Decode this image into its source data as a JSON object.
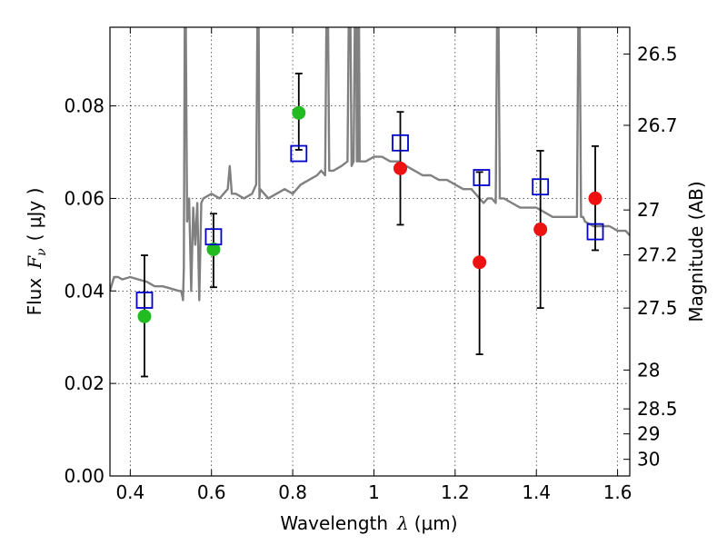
{
  "chart_data": {
    "type": "scatter",
    "xlabel": "Wavelength",
    "xlabel_symbol": "λ",
    "xlabel_unit": "(μm)",
    "ylabel": "Flux",
    "ylabel_symbol": "F",
    "ylabel_subscript": "ν",
    "ylabel_unit": "( μJy )",
    "y2label": "Magnitude (AB)",
    "xlim": [
      0.35,
      1.63
    ],
    "ylim": [
      0.0,
      0.097
    ],
    "grid": true,
    "x_ticks": [
      {
        "value": 0.4,
        "label": "0.4"
      },
      {
        "value": 0.6,
        "label": "0.6"
      },
      {
        "value": 0.8,
        "label": "0.8"
      },
      {
        "value": 1.0,
        "label": "1"
      },
      {
        "value": 1.2,
        "label": "1.2"
      },
      {
        "value": 1.4,
        "label": "1.4"
      },
      {
        "value": 1.6,
        "label": "1.6"
      }
    ],
    "y_ticks": [
      {
        "value": 0.0,
        "label": "0.00"
      },
      {
        "value": 0.02,
        "label": "0.02"
      },
      {
        "value": 0.04,
        "label": "0.04"
      },
      {
        "value": 0.06,
        "label": "0.06"
      },
      {
        "value": 0.08,
        "label": "0.08"
      }
    ],
    "y2_ticks": [
      {
        "flux": 0.0912,
        "label": "26.5"
      },
      {
        "flux": 0.0758,
        "label": "26.7"
      },
      {
        "flux": 0.0575,
        "label": "27"
      },
      {
        "flux": 0.0478,
        "label": "27.2"
      },
      {
        "flux": 0.0363,
        "label": "27.5"
      },
      {
        "flux": 0.0229,
        "label": "28"
      },
      {
        "flux": 0.0145,
        "label": "28.5"
      },
      {
        "flux": 0.0091,
        "label": "29"
      },
      {
        "flux": 0.0036,
        "label": "30"
      }
    ],
    "series": [
      {
        "name": "model spectrum",
        "kind": "line",
        "color": "#808080",
        "x": [
          0.35,
          0.36,
          0.37,
          0.38,
          0.4,
          0.42,
          0.44,
          0.46,
          0.48,
          0.5,
          0.52,
          0.525,
          0.528,
          0.53,
          0.532,
          0.535,
          0.54,
          0.545,
          0.55,
          0.555,
          0.56,
          0.565,
          0.57,
          0.575,
          0.58,
          0.6,
          0.62,
          0.63,
          0.64,
          0.645,
          0.65,
          0.655,
          0.66,
          0.68,
          0.7,
          0.71,
          0.715,
          0.718,
          0.72,
          0.74,
          0.76,
          0.78,
          0.8,
          0.82,
          0.84,
          0.86,
          0.87,
          0.88,
          0.885,
          0.89,
          0.9,
          0.92,
          0.935,
          0.94,
          0.945,
          0.95,
          0.955,
          0.958,
          0.96,
          0.962,
          0.965,
          0.97,
          0.98,
          1.0,
          1.02,
          1.04,
          1.06,
          1.08,
          1.1,
          1.12,
          1.14,
          1.16,
          1.18,
          1.2,
          1.22,
          1.24,
          1.25,
          1.26,
          1.27,
          1.28,
          1.29,
          1.3,
          1.305,
          1.31,
          1.315,
          1.32,
          1.34,
          1.36,
          1.38,
          1.4,
          1.42,
          1.44,
          1.46,
          1.48,
          1.5,
          1.505,
          1.51,
          1.515,
          1.52,
          1.54,
          1.56,
          1.58,
          1.6,
          1.62,
          1.63
        ],
        "y": [
          0.04,
          0.043,
          0.043,
          0.0425,
          0.043,
          0.0425,
          0.042,
          0.041,
          0.041,
          0.0405,
          0.04,
          0.04,
          0.039,
          0.038,
          0.045,
          0.12,
          0.055,
          0.06,
          0.04,
          0.058,
          0.05,
          0.059,
          0.038,
          0.059,
          0.06,
          0.061,
          0.06,
          0.061,
          0.062,
          0.067,
          0.061,
          0.061,
          0.061,
          0.06,
          0.061,
          0.063,
          0.12,
          0.06,
          0.062,
          0.06,
          0.061,
          0.062,
          0.061,
          0.063,
          0.064,
          0.065,
          0.066,
          0.065,
          0.12,
          0.066,
          0.066,
          0.067,
          0.068,
          0.12,
          0.067,
          0.068,
          0.12,
          0.068,
          0.068,
          0.12,
          0.068,
          0.068,
          0.068,
          0.069,
          0.069,
          0.068,
          0.068,
          0.067,
          0.066,
          0.065,
          0.065,
          0.064,
          0.064,
          0.063,
          0.062,
          0.062,
          0.061,
          0.06,
          0.059,
          0.06,
          0.06,
          0.059,
          0.12,
          0.06,
          0.06,
          0.06,
          0.059,
          0.058,
          0.058,
          0.058,
          0.057,
          0.056,
          0.056,
          0.056,
          0.056,
          0.12,
          0.056,
          0.056,
          0.055,
          0.054,
          0.054,
          0.054,
          0.053,
          0.053,
          0.052
        ]
      },
      {
        "name": "observed (green)",
        "kind": "circle",
        "color": "#22bb22",
        "x": [
          0.435,
          0.605,
          0.815
        ],
        "y": [
          0.0345,
          0.049,
          0.0785
        ]
      },
      {
        "name": "observed (red)",
        "kind": "circle",
        "color": "#ee1111",
        "x": [
          1.065,
          1.26,
          1.41,
          1.545
        ],
        "y": [
          0.0665,
          0.0462,
          0.0533,
          0.06
        ]
      },
      {
        "name": "model photometry",
        "kind": "square",
        "color": "#0000cc",
        "x": [
          0.435,
          0.605,
          0.815,
          1.065,
          1.265,
          1.41,
          1.545
        ],
        "y": [
          0.038,
          0.0517,
          0.0697,
          0.072,
          0.0645,
          0.0625,
          0.0528
        ]
      }
    ],
    "error_bars": [
      {
        "x": 0.435,
        "low": 0.0215,
        "high": 0.0477
      },
      {
        "x": 0.605,
        "low": 0.0408,
        "high": 0.0567
      },
      {
        "x": 0.815,
        "low": 0.0705,
        "high": 0.087
      },
      {
        "x": 1.065,
        "low": 0.0543,
        "high": 0.0787
      },
      {
        "x": 1.26,
        "low": 0.0263,
        "high": 0.0657
      },
      {
        "x": 1.41,
        "low": 0.0363,
        "high": 0.0703
      },
      {
        "x": 1.545,
        "low": 0.0488,
        "high": 0.0713
      }
    ]
  }
}
